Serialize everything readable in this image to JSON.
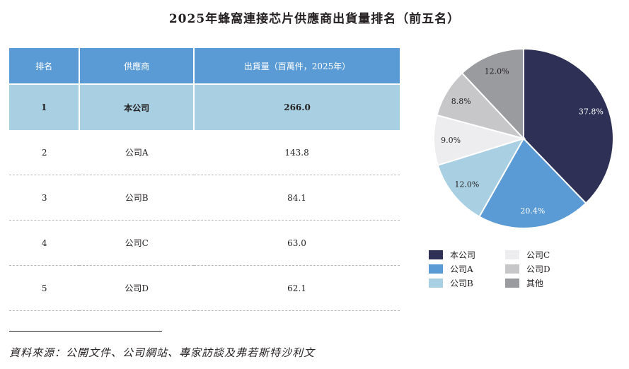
{
  "title": "2025年蜂窩連接芯片供應商出貨量排名（前五名）",
  "table": {
    "headers": [
      "排名",
      "供應商",
      "出貨量（百萬件，2025年）"
    ],
    "rows": [
      {
        "rank": "1",
        "supplier": "本公司",
        "volume": "266.0",
        "highlight": true
      },
      {
        "rank": "2",
        "supplier": "公司A",
        "volume": "143.8",
        "highlight": false
      },
      {
        "rank": "3",
        "supplier": "公司B",
        "volume": "84.1",
        "highlight": false
      },
      {
        "rank": "4",
        "supplier": "公司C",
        "volume": "63.0",
        "highlight": false
      },
      {
        "rank": "5",
        "supplier": "公司D",
        "volume": "62.1",
        "highlight": false
      }
    ]
  },
  "chart_data": {
    "type": "pie",
    "categories": [
      "本公司",
      "公司A",
      "公司B",
      "公司C",
      "公司D",
      "其他"
    ],
    "values": [
      37.8,
      20.4,
      12.0,
      9.0,
      8.8,
      12.0
    ],
    "labels": [
      "37.8%",
      "20.4%",
      "12.0%",
      "9.0%",
      "8.8%",
      "12.0%"
    ],
    "colors": [
      "#2e3155",
      "#5b9bd5",
      "#a9d0e2",
      "#ededef",
      "#c7c7c9",
      "#9a9b9e"
    ],
    "label_colors": [
      "#ffffff",
      "#ffffff",
      "#231f20",
      "#231f20",
      "#231f20",
      "#231f20"
    ],
    "start": "12 o'clock",
    "direction": "clockwise",
    "legend_position": "bottom"
  },
  "legend": {
    "items": [
      {
        "label": "本公司",
        "color": "#2e3155"
      },
      {
        "label": "公司C",
        "color": "#ededef"
      },
      {
        "label": "公司A",
        "color": "#5b9bd5"
      },
      {
        "label": "公司D",
        "color": "#c7c7c9"
      },
      {
        "label": "公司B",
        "color": "#a9d0e2"
      },
      {
        "label": "其他",
        "color": "#9a9b9e"
      }
    ]
  },
  "source": "資料來源：公開文件、公司網站、專家訪談及弗若斯特沙利文"
}
